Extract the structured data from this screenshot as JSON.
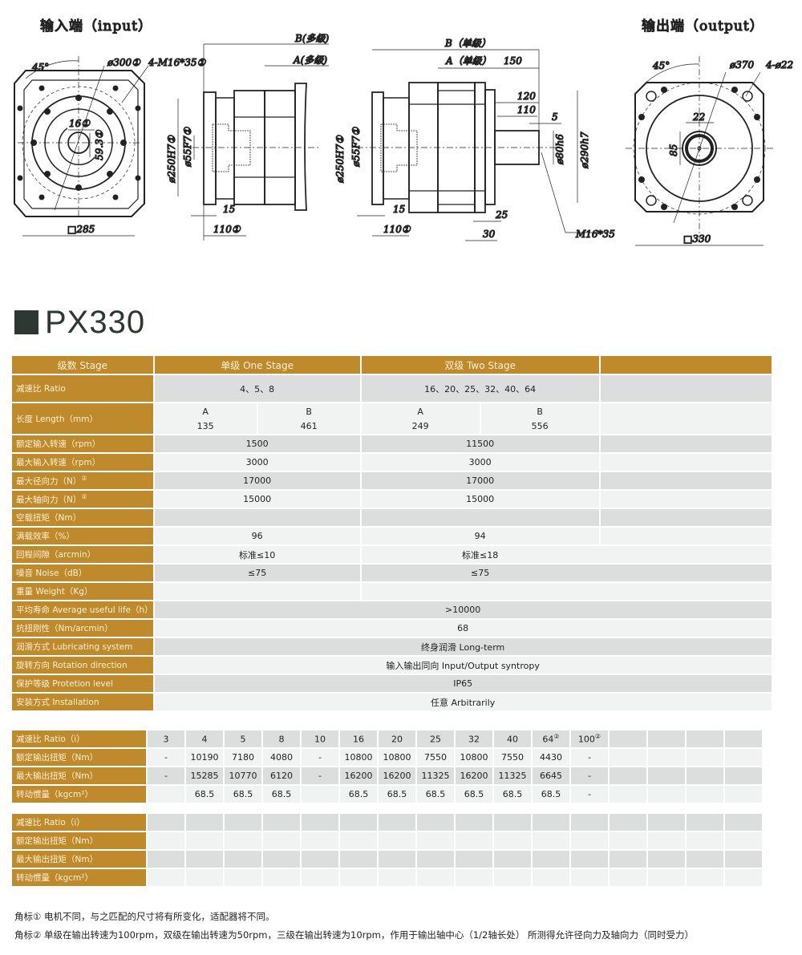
{
  "drawings": {
    "input_title": "输入端（input）",
    "output_title": "输出端（output）",
    "input_view": {
      "angle": "45°",
      "pcd": "ø300①",
      "bolts": "4-M16*35①",
      "key": "16①",
      "bore_depth": "59.3①",
      "square": "□285"
    },
    "side_multi": {
      "B": "B(多级)",
      "A": "A(多级)",
      "pilot": "ø250H7①",
      "bore": "ø55F7①",
      "d15": "15",
      "d110": "110①"
    },
    "side_single": {
      "B": "B（单级）",
      "A": "A（单级）",
      "d150": "150",
      "d120": "120",
      "d110s": "110",
      "d5": "5",
      "pilot": "ø250H7①",
      "bore": "ø55F7①",
      "shaft": "ø80h6",
      "flange": "ø290h7",
      "d15": "15",
      "d110": "110①",
      "d25": "25",
      "d30": "30",
      "thread": "M16*35"
    },
    "output_view": {
      "angle": "45°",
      "pcd": "ø370",
      "holes": "4-ø22",
      "key": "22",
      "shaft_h": "85",
      "square": "□330"
    }
  },
  "model": "PX330",
  "spec": {
    "header": {
      "label": "级数 Stage",
      "one": "单级 One Stage",
      "two": "双级 Two Stage"
    },
    "ratio": {
      "label": "减速比 Ratio",
      "one": "4、5、8",
      "two": "16、20、25、32、40、64"
    },
    "length": {
      "label": "长度 Length（mm）",
      "one_a_h": "A",
      "one_b_h": "B",
      "two_a_h": "A",
      "two_b_h": "B",
      "one_a": "135",
      "one_b": "461",
      "two_a": "249",
      "two_b": "556"
    },
    "rows": [
      {
        "label": "额定输入转速（rpm）",
        "one": "1500",
        "two": "11500"
      },
      {
        "label": "最大输入转速（rpm）",
        "one": "3000",
        "two": "3000"
      },
      {
        "label": "最大径向力（N）",
        "sup": "②",
        "one": "17000",
        "two": "17000"
      },
      {
        "label": "最大轴向力（N）",
        "sup": "②",
        "one": "15000",
        "two": "15000"
      },
      {
        "label": "空载扭矩（Nm）",
        "one": "",
        "two": ""
      },
      {
        "label": "满载效率（%）",
        "one": "96",
        "two": "94"
      },
      {
        "label": "回程间隙（arcmin）",
        "one": "标准≤10",
        "two": "标准≤18"
      },
      {
        "label": "噪音 Noise（dB）",
        "one": "≤75",
        "two": "≤75"
      },
      {
        "label": "重量 Weight（Kg）",
        "one": "",
        "two": ""
      }
    ],
    "shared_rows": [
      {
        "label": "平均寿命 Average useful life（h）",
        "value": ">10000"
      },
      {
        "label": "抗扭刚性（Nm/arcmin）",
        "value": "68"
      },
      {
        "label": "润滑方式 Lubricating system",
        "value": "终身润滑  Long-term"
      },
      {
        "label": "旋转方向 Rotation direction",
        "value": "输入输出同向  Input/Output syntropy"
      },
      {
        "label": "保护等级 Protetion level",
        "value": "IP65"
      },
      {
        "label": "安装方式 Installation",
        "value": "任意  Arbitrarily"
      }
    ]
  },
  "torque_table": {
    "labels": [
      "减速比 Ratio（i）",
      "额定输出扭矩（Nm）",
      "最大输出扭矩（Nm）",
      "转动惯量（kgcm²）"
    ],
    "ratios": [
      "3",
      "4",
      "5",
      "8",
      "10",
      "16",
      "20",
      "25",
      "32",
      "40",
      "64",
      "100",
      "",
      "",
      "",
      ""
    ],
    "ratio_sup": [
      "",
      "",
      "",
      "",
      "",
      "",
      "",
      "",
      "",
      "",
      "②",
      "②",
      "",
      "",
      "",
      ""
    ],
    "rated": [
      "-",
      "10190",
      "7180",
      "4080",
      "-",
      "10800",
      "10800",
      "7550",
      "10800",
      "7550",
      "4430",
      "-",
      "",
      "",
      "",
      ""
    ],
    "max": [
      "-",
      "15285",
      "10770",
      "6120",
      "-",
      "16200",
      "16200",
      "11325",
      "16200",
      "11325",
      "6645",
      "-",
      "",
      "",
      "",
      ""
    ],
    "inertia": [
      "",
      "68.5",
      "68.5",
      "68.5",
      "",
      "68.5",
      "68.5",
      "68.5",
      "68.5",
      "68.5",
      "68.5",
      "-",
      "",
      "",
      "",
      ""
    ]
  },
  "empty_table": {
    "labels": [
      "减速比 Ratio（i）",
      "额定输出扭矩（Nm）",
      "最大输出扭矩（Nm）",
      "转动惯量（kgcm²）"
    ]
  },
  "notes": [
    "角标① 电机不同，与之匹配的尺寸将有所变化，适配器将不同。",
    "角标② 单级在输出转速为100rpm，双级在输出转速为50rpm，三级在输出转速为10rpm，作用于输出轴中心（1/2轴长处）  所测得允许径向力及轴向力（同时受力）"
  ]
}
